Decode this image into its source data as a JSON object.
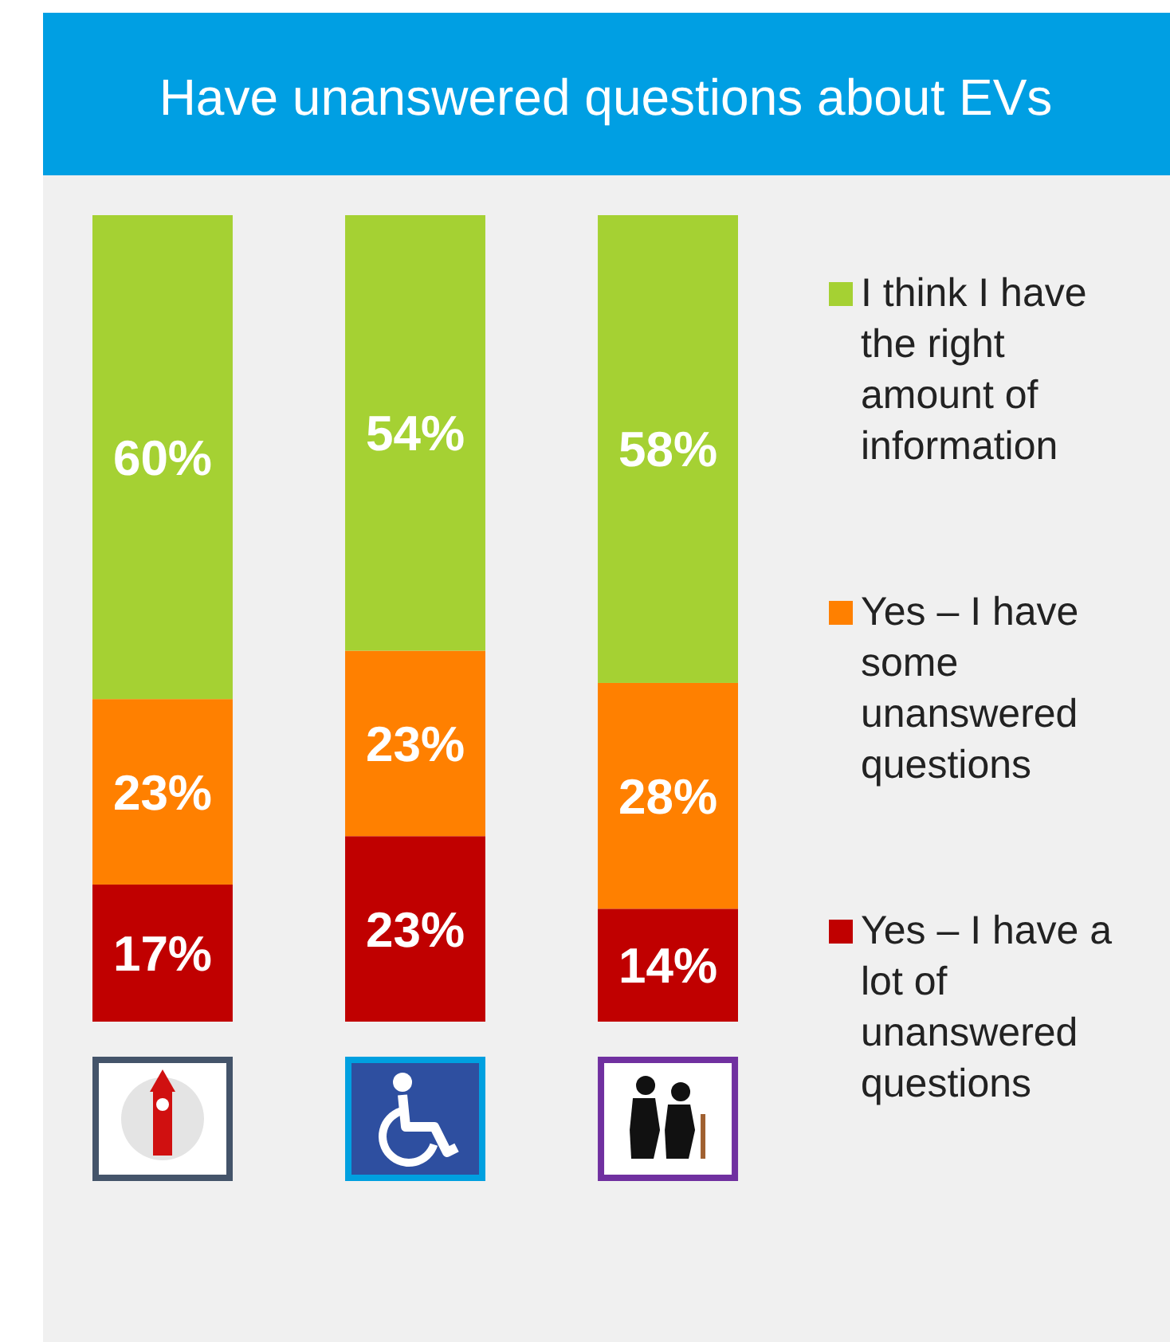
{
  "chart_data": {
    "type": "bar",
    "title": "Have unanswered questions about EVs",
    "categories": [
      null,
      null,
      null
    ],
    "stacked": true,
    "legend": "right",
    "series": [
      {
        "name": "Yes – I have a lot of unanswered questions",
        "color": "#c00000",
        "values": [
          17,
          23,
          14
        ],
        "value_labels": [
          "17%",
          "23%",
          "14%"
        ]
      },
      {
        "name": "Yes – I have some unanswered questions",
        "color": "#ff8000",
        "values": [
          23,
          23,
          28
        ],
        "value_labels": [
          "23%",
          "23%",
          "28%"
        ]
      },
      {
        "name": "I think I have the right amount of information",
        "color": "#a5d133",
        "values": [
          60,
          54,
          58
        ],
        "value_labels": [
          "60%",
          "54%",
          "58%"
        ]
      }
    ]
  }
}
